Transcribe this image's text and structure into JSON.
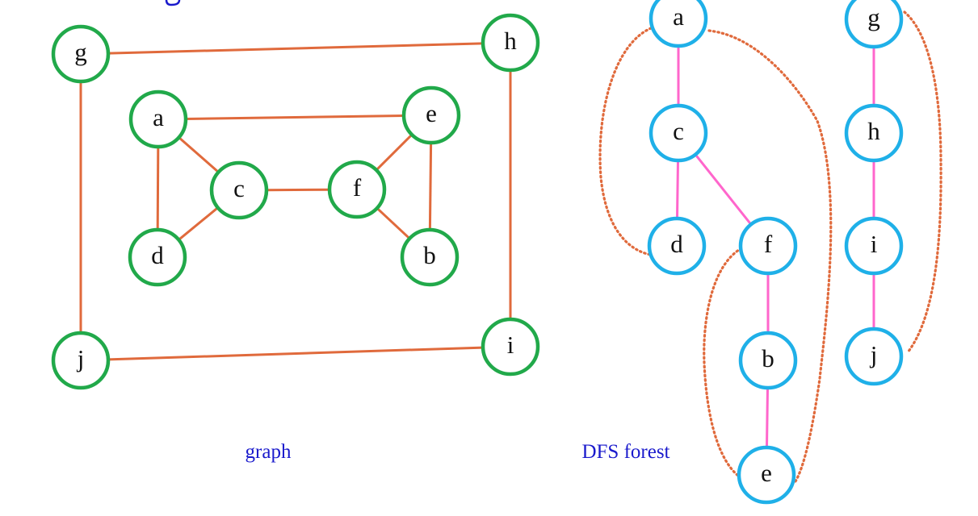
{
  "colors": {
    "graph_edge": "#e06a3c",
    "graph_node_stroke": "#21a94a",
    "tree_edge": "#ff66cc",
    "tree_node_stroke": "#1fb0e8",
    "tree_outline": "#e06a3c",
    "caption": "#1a1acc"
  },
  "graph": {
    "caption": "graph",
    "nodes": [
      "g",
      "h",
      "a",
      "e",
      "c",
      "f",
      "d",
      "b",
      "j",
      "i"
    ],
    "edges": [
      [
        "g",
        "h"
      ],
      [
        "g",
        "j"
      ],
      [
        "h",
        "i"
      ],
      [
        "j",
        "i"
      ],
      [
        "a",
        "e"
      ],
      [
        "a",
        "c"
      ],
      [
        "a",
        "d"
      ],
      [
        "c",
        "d"
      ],
      [
        "c",
        "f"
      ],
      [
        "f",
        "e"
      ],
      [
        "f",
        "b"
      ],
      [
        "e",
        "b"
      ]
    ]
  },
  "dfs_forest": {
    "caption": "DFS forest",
    "nodes": [
      "a",
      "c",
      "d",
      "f",
      "b",
      "e",
      "g",
      "h",
      "i",
      "j"
    ],
    "tree_edges": [
      [
        "a",
        "c"
      ],
      [
        "c",
        "d"
      ],
      [
        "c",
        "f"
      ],
      [
        "f",
        "b"
      ],
      [
        "b",
        "e"
      ],
      [
        "g",
        "h"
      ],
      [
        "h",
        "i"
      ],
      [
        "i",
        "j"
      ]
    ],
    "back_edges": [
      [
        "d",
        "a"
      ],
      [
        "e",
        "a"
      ],
      [
        "e",
        "f"
      ],
      [
        "j",
        "g"
      ]
    ]
  }
}
